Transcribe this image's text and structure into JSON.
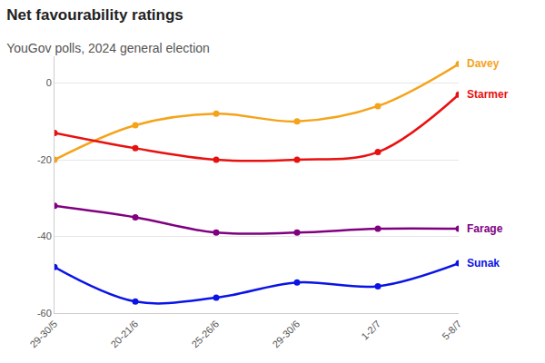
{
  "chart_data": {
    "type": "line",
    "title": "Net favourability ratings",
    "subtitle": "YouGov polls, 2024 general election",
    "categories": [
      "29-30/5",
      "20-21/6",
      "25-26/6",
      "29-30/6",
      "1-2/7",
      "5-8/7"
    ],
    "series": [
      {
        "name": "Davey",
        "color": "#f5a31a",
        "values": [
          -20,
          -11,
          -8,
          -10,
          -6,
          5
        ]
      },
      {
        "name": "Starmer",
        "color": "#e8110f",
        "values": [
          -13,
          -17,
          -20,
          -20,
          -18,
          -3
        ]
      },
      {
        "name": "Farage",
        "color": "#800080",
        "values": [
          -32,
          -35,
          -39,
          -39,
          -38,
          -38
        ]
      },
      {
        "name": "Sunak",
        "color": "#0a14e6",
        "values": [
          -48,
          -57,
          -56,
          -52,
          -53,
          -47
        ]
      }
    ],
    "ylim": [
      -60,
      7
    ],
    "yticks": [
      -60,
      -40,
      -20,
      0
    ],
    "grid": true,
    "marker": "circle",
    "line_style": "smooth"
  }
}
